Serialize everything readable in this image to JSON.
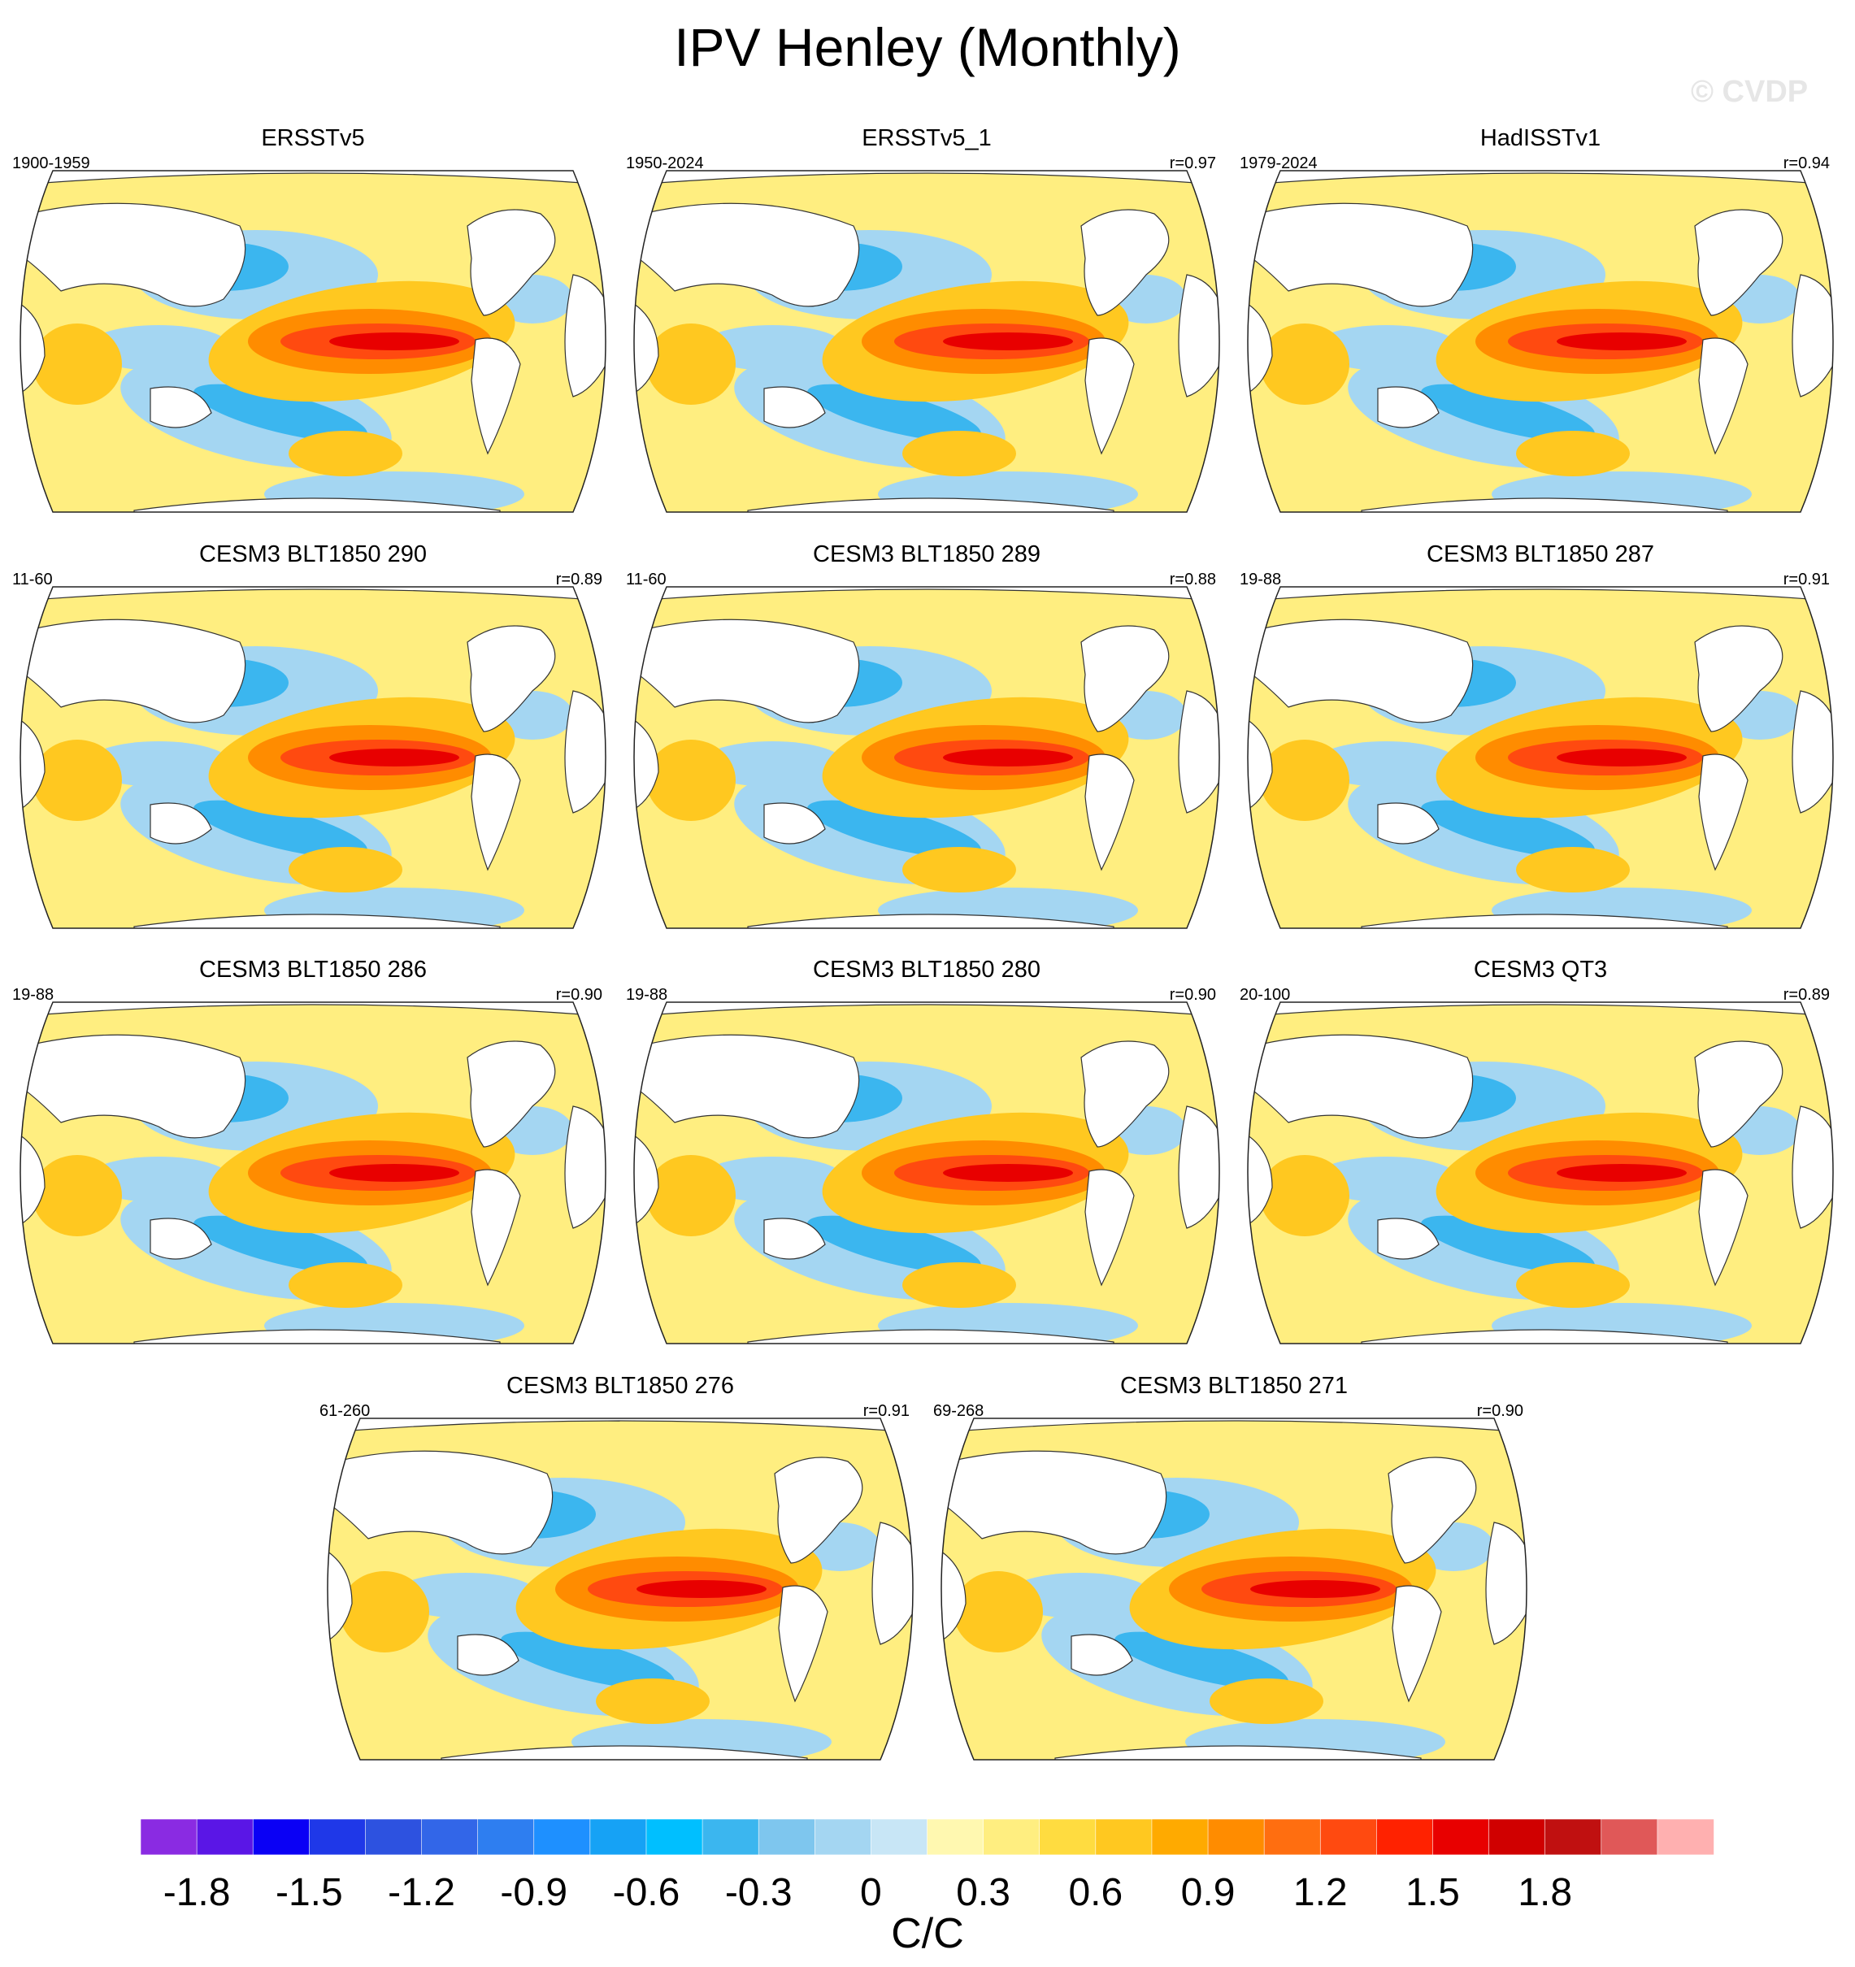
{
  "figure": {
    "title": "IPV Henley (Monthly)",
    "watermark": "© CVDP",
    "units": "C/C"
  },
  "chart_data": {
    "type": "map",
    "variable": "IPV Henley regression pattern (SST)",
    "projection": "Robinson (global)",
    "panels": [
      {
        "title": "ERSSTv5",
        "period": "1900-1959",
        "r": ""
      },
      {
        "title": "ERSSTv5_1",
        "period": "1950-2024",
        "r": "r=0.97"
      },
      {
        "title": "HadISSTv1",
        "period": "1979-2024",
        "r": "r=0.94"
      },
      {
        "title": "CESM3 BLT1850 290",
        "period": "11-60",
        "r": "r=0.89"
      },
      {
        "title": "CESM3 BLT1850 289",
        "period": "11-60",
        "r": "r=0.88"
      },
      {
        "title": "CESM3 BLT1850 287",
        "period": "19-88",
        "r": "r=0.91"
      },
      {
        "title": "CESM3 BLT1850 286",
        "period": "19-88",
        "r": "r=0.90"
      },
      {
        "title": "CESM3 BLT1850 280",
        "period": "19-88",
        "r": "r=0.90"
      },
      {
        "title": "CESM3 QT3",
        "period": "20-100",
        "r": "r=0.89"
      },
      {
        "title": "CESM3 BLT1850 276",
        "period": "61-260",
        "r": "r=0.91"
      },
      {
        "title": "CESM3 BLT1850 271",
        "period": "69-268",
        "r": "r=0.90"
      }
    ],
    "colorbar": {
      "units": "C/C",
      "tick_values": [
        -1.8,
        -1.5,
        -1.2,
        -0.9,
        -0.6,
        -0.3,
        0,
        0.3,
        0.6,
        0.9,
        1.2,
        1.5,
        1.8
      ],
      "tick_labels": [
        "-1.8",
        "-1.5",
        "-1.2",
        "-0.9",
        "-0.6",
        "-0.3",
        "0",
        "0.3",
        "0.6",
        "0.9",
        "1.2",
        "1.5",
        "1.8"
      ],
      "colors": [
        "#8a2be2",
        "#5a16e6",
        "#0a00f5",
        "#1f38e8",
        "#2d52e0",
        "#3266e8",
        "#2e7ef0",
        "#1e90ff",
        "#16a2f5",
        "#00bfff",
        "#3bb6ef",
        "#7ec6ee",
        "#a4d6f2",
        "#c8e6f6",
        "#fff8b0",
        "#ffee80",
        "#ffdc40",
        "#ffc820",
        "#ffaa00",
        "#ff8c00",
        "#ff6e10",
        "#ff4a10",
        "#ff2200",
        "#e80000",
        "#d00000",
        "#c01010",
        "#e05858",
        "#ffb0b0"
      ]
    }
  }
}
